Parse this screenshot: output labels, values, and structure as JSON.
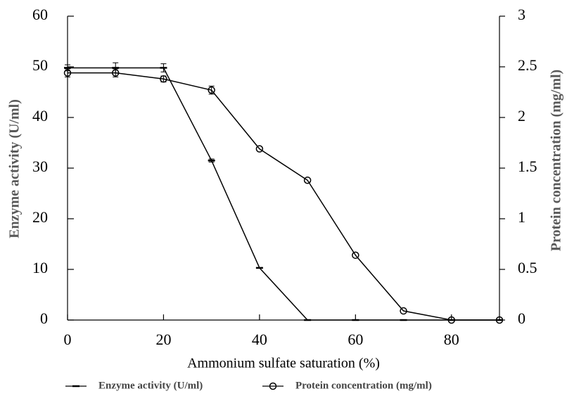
{
  "chart_data": {
    "type": "line",
    "xlabel": "Ammonium sulfate saturation (%)",
    "ylabel": "Enzyme activity (U/ml)",
    "y2label": "Protein concentration (mg/ml)",
    "x": [
      0,
      10,
      20,
      30,
      40,
      50,
      60,
      70,
      80,
      90
    ],
    "xlim": [
      0,
      90
    ],
    "xticks": [
      0,
      20,
      40,
      60,
      80
    ],
    "ylim": [
      0,
      60
    ],
    "yticks": [
      0,
      10,
      20,
      30,
      40,
      50,
      60
    ],
    "y2lim": [
      0,
      3
    ],
    "y2ticks": [
      0,
      0.5,
      1,
      1.5,
      2,
      2.5,
      3
    ],
    "legend": "bottom",
    "series": [
      {
        "name": "Enzyme activity (U/ml)",
        "color": "#000000",
        "marker": "dash",
        "values": [
          49.8,
          49.8,
          49.8,
          31.5,
          10.3,
          0,
          0,
          0,
          0,
          0
        ],
        "errors": [
          0.6,
          1.0,
          0.8,
          0.3,
          0,
          0,
          0,
          0,
          0,
          0
        ]
      },
      {
        "name": "Protein concentration (mg/ml)",
        "color": "#000000",
        "marker": "circle",
        "axis": "y2",
        "values": [
          2.44,
          2.44,
          2.38,
          2.27,
          1.69,
          1.38,
          0.64,
          0.09,
          0,
          0
        ],
        "errors": [
          0.04,
          0.04,
          0.03,
          0.04,
          0,
          0,
          0,
          0,
          0,
          0
        ]
      }
    ]
  }
}
